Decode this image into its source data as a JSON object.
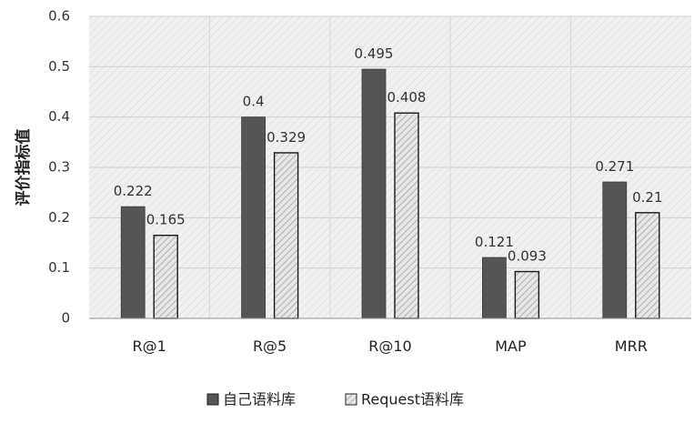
{
  "chart_data": {
    "type": "bar",
    "title": "",
    "xlabel": "",
    "ylabel": "评价指标值",
    "ylim": [
      0,
      0.6
    ],
    "yticks": [
      "0",
      "0.1",
      "0.2",
      "0.3",
      "0.4",
      "0.5",
      "0.6"
    ],
    "categories": [
      "R@1",
      "R@5",
      "R@10",
      "MAP",
      "MRR"
    ],
    "series": [
      {
        "name": "自己语料库",
        "values": [
          0.222,
          0.4,
          0.495,
          0.121,
          0.271
        ],
        "labels": [
          "0.222",
          "0.4",
          "0.495",
          "0.121",
          "0.271"
        ],
        "color": "#555555",
        "pattern": "solid"
      },
      {
        "name": "Request语料库",
        "values": [
          0.165,
          0.329,
          0.408,
          0.093,
          0.21
        ],
        "labels": [
          "0.165",
          "0.329",
          "0.408",
          "0.093",
          "0.21"
        ],
        "color": "#d9d9d9",
        "pattern": "hatched"
      }
    ],
    "grid": true,
    "legend_position": "bottom",
    "plot_background": "#eeeeee"
  }
}
